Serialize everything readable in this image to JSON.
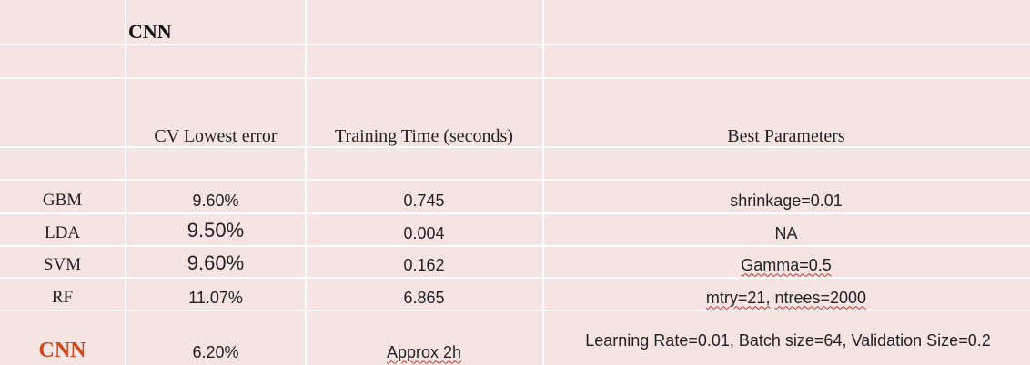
{
  "table": {
    "title": "CNN",
    "headers": {
      "cv_error": "CV Lowest error",
      "training_time": "Training Time (seconds)",
      "best_parameters": "Best Parameters"
    },
    "rows": [
      {
        "model": "GBM",
        "cv_error": "9.60%",
        "training_time": "0.745",
        "params": "shrinkage=0.01"
      },
      {
        "model": "LDA",
        "cv_error": "9.50%",
        "training_time": "0.004",
        "params": "NA"
      },
      {
        "model": "SVM",
        "cv_error": "9.60%",
        "training_time": "0.162",
        "params": "Gamma=0.5"
      },
      {
        "model": "RF",
        "cv_error": "11.07%",
        "training_time": "6.865",
        "params_part1": "mtry=21,",
        "params_part2": "ntrees=2000"
      },
      {
        "model": "CNN",
        "cv_error": "6.20%",
        "training_time": "Approx 2h",
        "params": "Learning Rate=0.01, Batch size=64, Validation Size=0.2"
      }
    ]
  },
  "colors": {
    "background": "#f6e4e3",
    "grid": "#ffffff",
    "cnn_accent": "#d2451c",
    "spellcheck_underline": "#c0392b"
  }
}
